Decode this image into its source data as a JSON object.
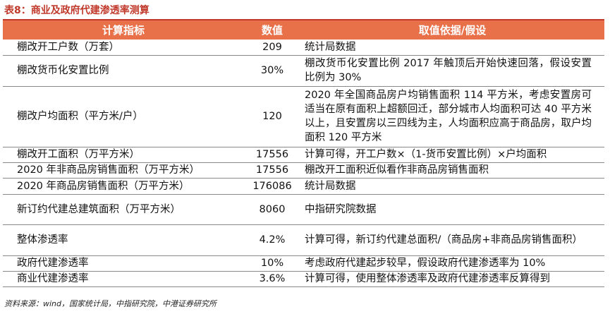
{
  "title": "表8：商业及政府代建渗透率测算",
  "headers": [
    "计算指标",
    "数值",
    "取值依据/假设"
  ],
  "rows": [
    {
      "indicator": "棚改开工户数（万套）",
      "value": "209",
      "basis": "统计局数据",
      "h": 22
    },
    {
      "indicator": "棚改货币化安置比例",
      "value": "30%",
      "basis": "棚改货币化安置比例 2017 年触顶后开始快速回落，假设安置比例为 30%",
      "h": 44
    },
    {
      "indicator": "棚改户均面积（平方米/户）",
      "value": "120",
      "basis": "2020 年全国商品房户均销售面积 114 平方米，考虑安置房可适当在原有面积上超额回迁，部分城市人均面积可达 40 平方米以上，且安置房以三四线为主，人均面积应高于商品房，取户均面积 120 平方米",
      "h": 86
    },
    {
      "indicator": "棚改开工面积（万平方米）",
      "value": "17556",
      "basis": "计算可得，开工户数×（1-货币安置比例）×户均面积",
      "h": 22
    },
    {
      "indicator": "2020 年非商品房销售面积（万平方米）",
      "value": "17556",
      "basis": "棚改开工面积近似看作非商品房销售面积",
      "h": 22
    },
    {
      "indicator": "2020 年商品房销售面积（万平方米）",
      "value": "176086",
      "basis": "统计局数据",
      "h": 23
    },
    {
      "indicator": "新订约代建总建筑面积（万平方米）",
      "value": "8060",
      "basis": "中指研究院数据",
      "h": 43
    },
    {
      "indicator": "整体渗透率",
      "value": "4.2%",
      "basis": "计算可得，新订约代建总面积/（商品房+非商品房销售面积）",
      "h": 44
    },
    {
      "indicator": "政府代建渗透率",
      "value": "10%",
      "basis": "考虑政府代建起步较早，假设政府代建渗透率为 10%",
      "h": 22
    },
    {
      "indicator": "商业代建渗透率",
      "value": "3.6%",
      "basis": "计算可得，使用整体渗透率及政府代建渗透率反算得到",
      "h": 22
    }
  ],
  "source": "资料来源：wind，国家统计局，中指研究院，中港证券研究所"
}
